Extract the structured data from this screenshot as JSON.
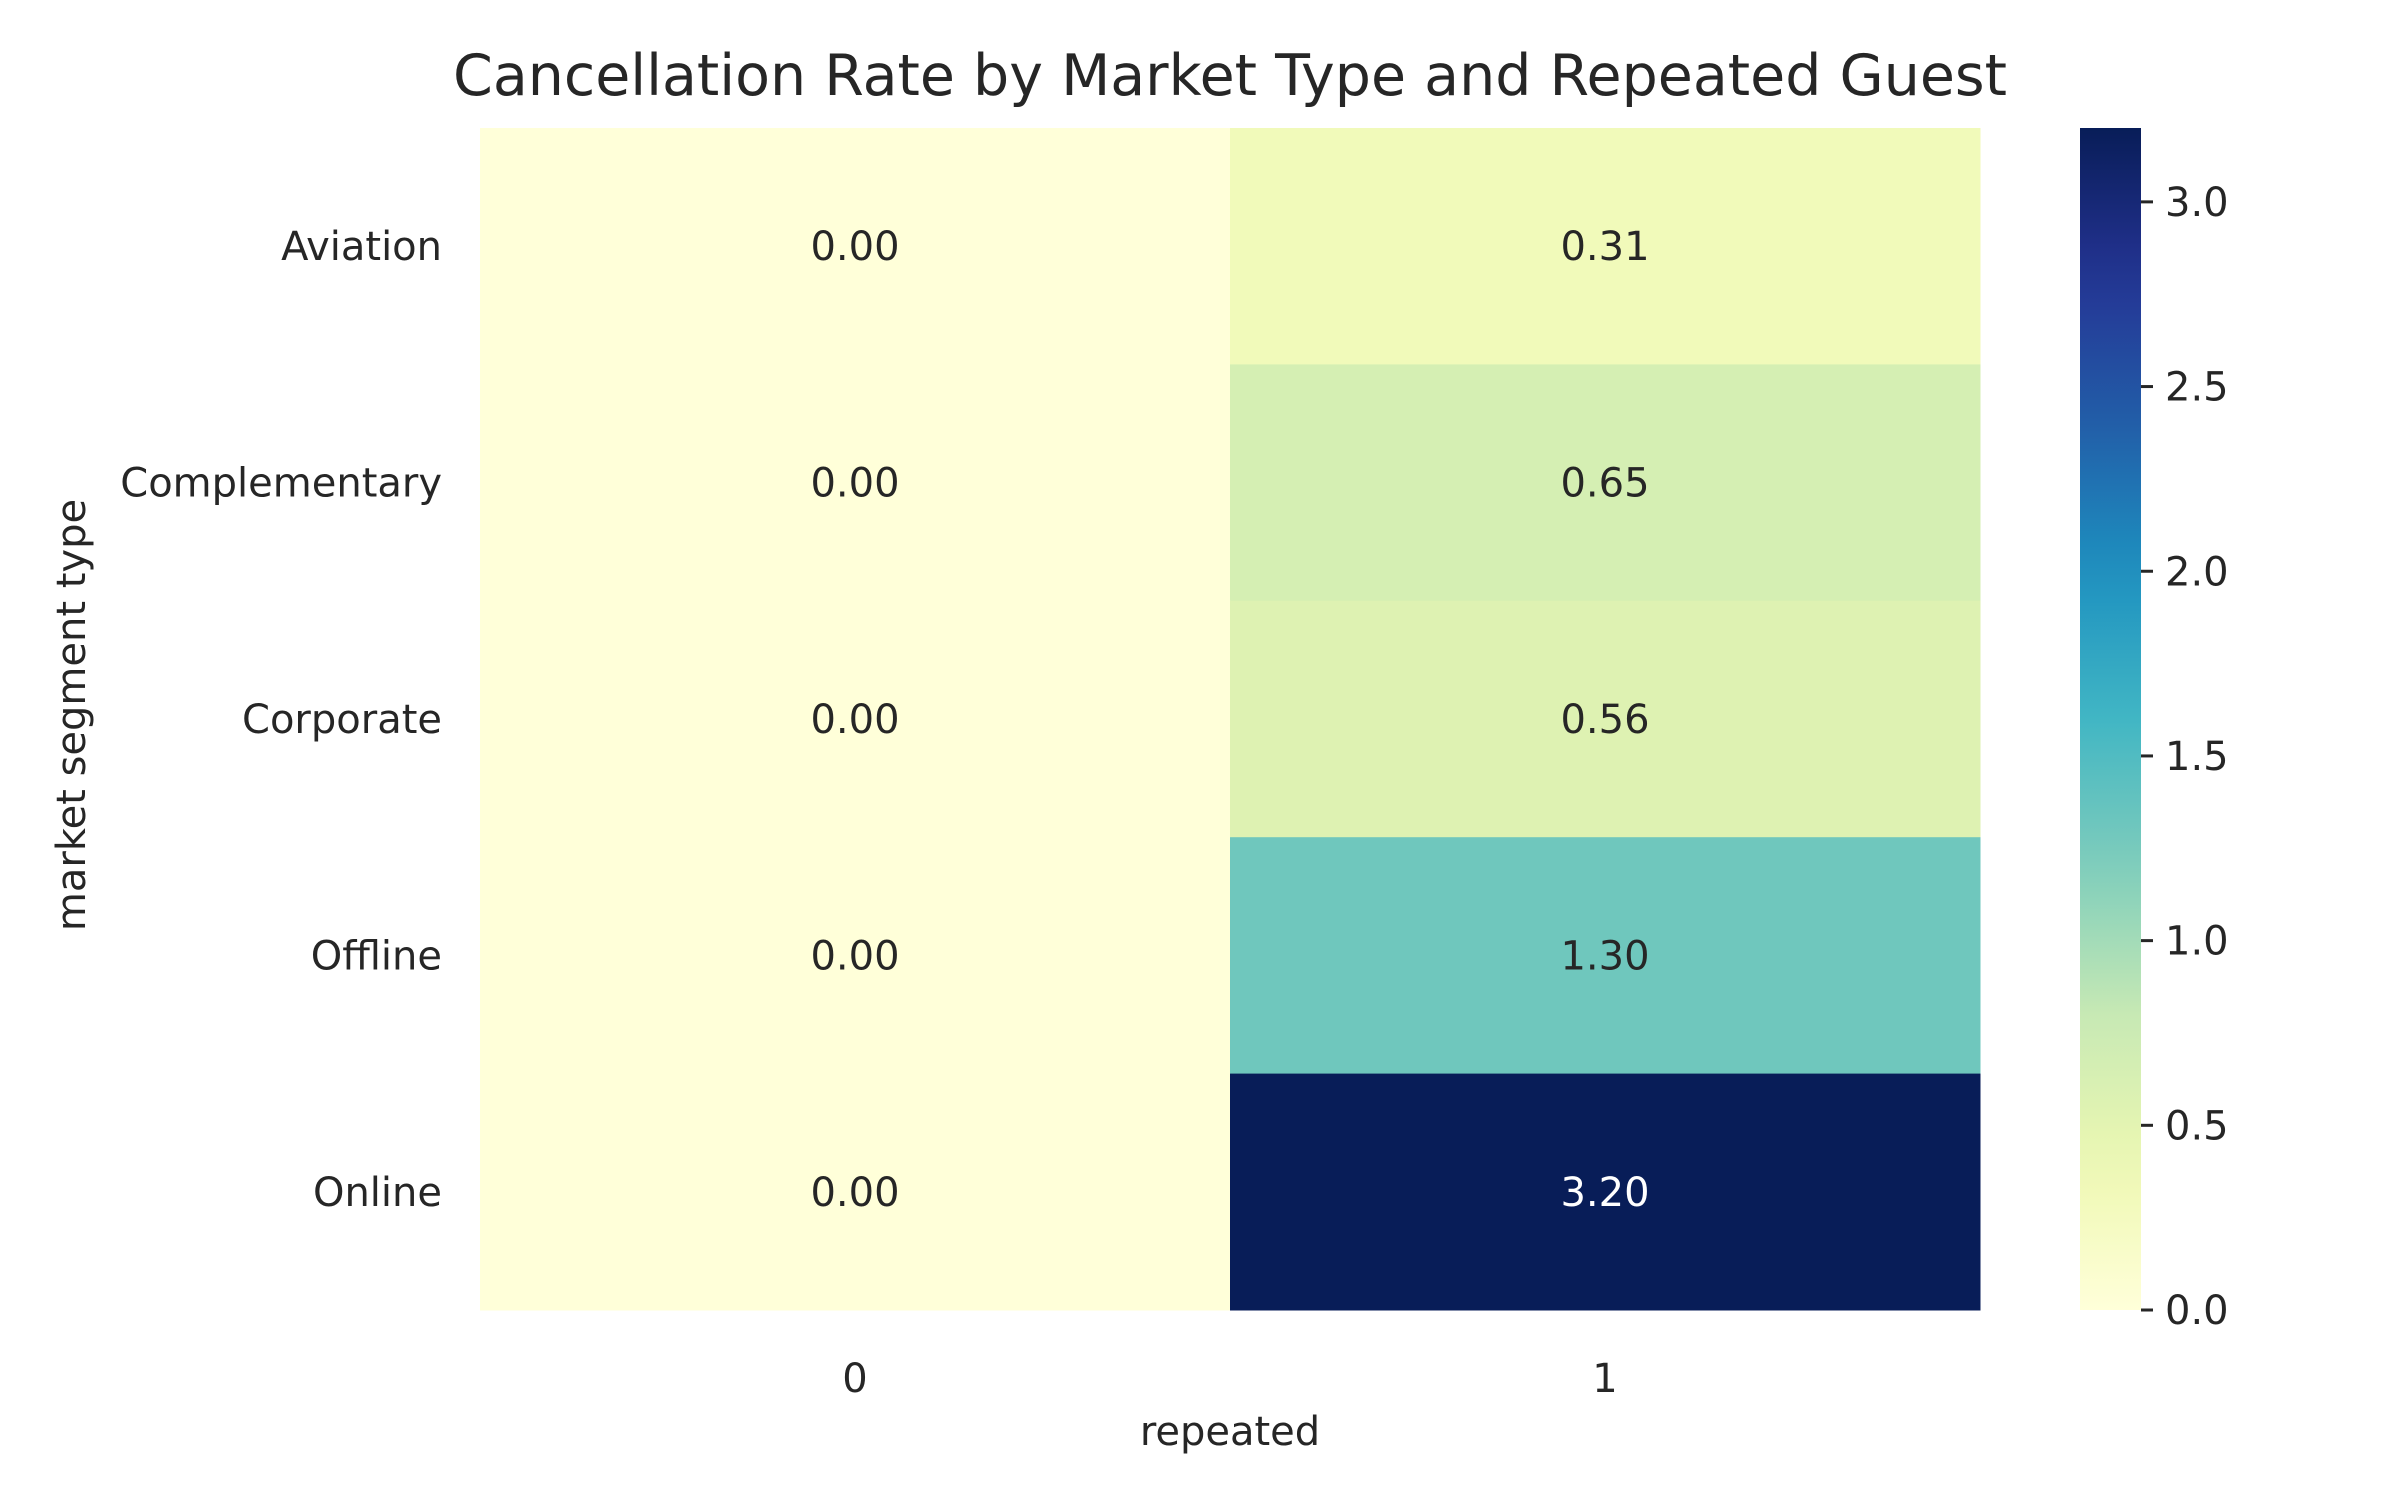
{
  "chart_data": {
    "type": "heatmap",
    "title": "Cancellation Rate by Market Type and Repeated Guest",
    "xlabel": "repeated",
    "ylabel": "market segment type",
    "x_categories": [
      "0",
      "1"
    ],
    "y_categories": [
      "Aviation",
      "Complementary",
      "Corporate",
      "Offline",
      "Online"
    ],
    "values": [
      [
        0.0,
        0.31
      ],
      [
        0.0,
        0.65
      ],
      [
        0.0,
        0.56
      ],
      [
        0.0,
        1.3
      ],
      [
        0.0,
        3.2
      ]
    ],
    "value_labels": [
      [
        "0.00",
        "0.31"
      ],
      [
        "0.00",
        "0.65"
      ],
      [
        "0.00",
        "0.56"
      ],
      [
        "0.00",
        "1.30"
      ],
      [
        "0.00",
        "3.20"
      ]
    ],
    "colormap": "YlGnBu",
    "colorbar": {
      "vmin": 0.0,
      "vmax": 3.2,
      "ticks": [
        0.0,
        0.5,
        1.0,
        1.5,
        2.0,
        2.5,
        3.0
      ],
      "tick_labels": [
        "0.0",
        "0.5",
        "1.0",
        "1.5",
        "2.0",
        "2.5",
        "3.0"
      ]
    },
    "grid": false,
    "legend": "colorbar-right"
  }
}
